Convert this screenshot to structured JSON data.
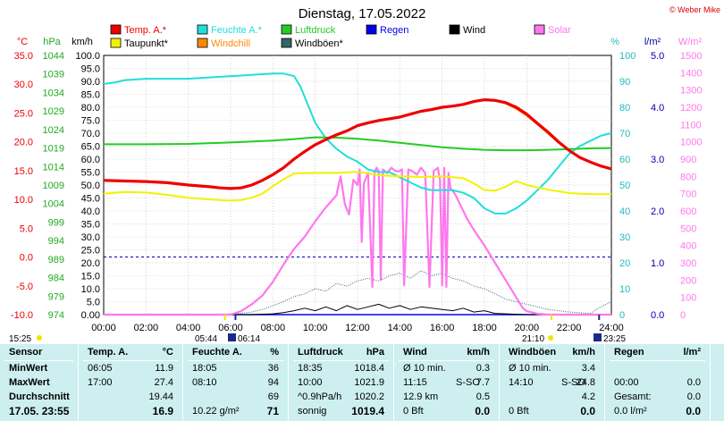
{
  "title": "Dienstag, 17.05.2022",
  "copyright": "© Weber Mike",
  "colors": {
    "temp": "#ee0000",
    "humidity": "#22dddd",
    "pressure": "#22cc22",
    "rain": "#0000ee",
    "wind": "#000000",
    "solar": "#ff77ee",
    "dew": "#f2f200",
    "windchill": "#ff8800",
    "gust": "#336666",
    "axis_blue": "#0000aa",
    "stats_bg": "#cdeff0"
  },
  "legend": [
    {
      "label": "Temp. A.*",
      "color": "#ee0000"
    },
    {
      "label": "Feuchte A.*",
      "color": "#22dddd"
    },
    {
      "label": "Luftdruck",
      "color": "#22cc22"
    },
    {
      "label": "Regen",
      "color": "#0000ee"
    },
    {
      "label": "Wind",
      "color": "#000000"
    },
    {
      "label": "Solar",
      "color": "#ff77ee"
    },
    {
      "label": "Taupunkt*",
      "color": "#f2f200"
    },
    {
      "label": "Windchill",
      "color": "#ff8800"
    },
    {
      "label": "Windböen*",
      "color": "#336666"
    }
  ],
  "axes": {
    "temp": {
      "unit": "°C",
      "ticks": [
        "35.0",
        "30.0",
        "25.0",
        "20.0",
        "15.0",
        "10.0",
        "5.0",
        "0.0",
        "-5.0",
        "-10.0"
      ]
    },
    "pressure": {
      "unit": "hPa",
      "ticks": [
        "1044",
        "1039",
        "1034",
        "1029",
        "1024",
        "1019",
        "1014",
        "1009",
        "1004",
        "999",
        "994",
        "989",
        "984",
        "979",
        "974"
      ]
    },
    "wind": {
      "unit": "km/h",
      "ticks": [
        "100.0",
        "95.0",
        "90.0",
        "85.0",
        "80.0",
        "75.0",
        "70.0",
        "65.0",
        "60.0",
        "55.0",
        "50.0",
        "45.0",
        "40.0",
        "35.0",
        "30.0",
        "25.0",
        "20.0",
        "15.0",
        "10.0",
        "5.0",
        "0.00"
      ]
    },
    "humidity": {
      "unit": "%",
      "ticks": [
        "100",
        "90",
        "80",
        "70",
        "60",
        "50",
        "40",
        "30",
        "20",
        "10",
        "0"
      ]
    },
    "rain": {
      "unit": "l/m²",
      "ticks": [
        "5.0",
        "4.0",
        "3.0",
        "2.0",
        "1.0",
        "0.0"
      ]
    },
    "solar": {
      "unit": "W/m²",
      "ticks": [
        "1500",
        "1400",
        "1300",
        "1200",
        "1100",
        "1000",
        "900",
        "800",
        "700",
        "600",
        "500",
        "400",
        "300",
        "200",
        "100",
        "0"
      ]
    },
    "x": {
      "ticks": [
        "00:00",
        "02:00",
        "04:00",
        "06:00",
        "08:00",
        "10:00",
        "12:00",
        "14:00",
        "16:00",
        "18:00",
        "20:00",
        "22:00",
        "24:00"
      ],
      "range": [
        0,
        24
      ]
    }
  },
  "sun_times": {
    "left": "15:25",
    "sunrise_a": "05:44",
    "sunrise_b": "06:14",
    "sunset_a": "21:10",
    "sunset_b": "23:25"
  },
  "chart_data": {
    "type": "line",
    "title": "Dienstag, 17.05.2022",
    "x_unit": "hours",
    "xlim": [
      0,
      24
    ],
    "series": [
      {
        "name": "Temp. A.*",
        "axis": "°C",
        "ylim": [
          -10,
          35
        ],
        "x": [
          0,
          1,
          2,
          3,
          4,
          5,
          5.5,
          6,
          6.5,
          7,
          7.5,
          8,
          8.5,
          9,
          9.5,
          10,
          10.5,
          11,
          11.5,
          12,
          12.5,
          13,
          13.5,
          14,
          14.5,
          15,
          15.5,
          16,
          16.5,
          17,
          17.5,
          18,
          18.5,
          19,
          19.5,
          20,
          20.5,
          21,
          21.5,
          22,
          22.5,
          23,
          23.5,
          24
        ],
        "y": [
          13.3,
          13.2,
          13.1,
          12.9,
          12.5,
          12.2,
          12.0,
          11.9,
          12.0,
          12.5,
          13.3,
          14.3,
          15.5,
          17.0,
          18.3,
          19.5,
          20.4,
          21.2,
          21.9,
          22.8,
          23.3,
          23.7,
          24.0,
          24.3,
          24.8,
          25.3,
          25.6,
          26.0,
          26.2,
          26.5,
          27.0,
          27.3,
          27.2,
          26.8,
          26.0,
          24.8,
          23.2,
          21.7,
          20.0,
          18.5,
          17.3,
          16.5,
          15.8,
          15.3
        ]
      },
      {
        "name": "Feuchte A.*",
        "axis": "%",
        "ylim": [
          0,
          100
        ],
        "x": [
          0,
          0.5,
          1,
          2,
          3,
          4,
          5,
          6,
          7,
          8,
          8.5,
          9,
          9.3,
          9.6,
          10,
          10.5,
          11,
          11.5,
          12,
          12.5,
          13,
          13.5,
          14,
          14.5,
          15,
          15.5,
          16,
          16.5,
          17,
          17.5,
          18,
          18.5,
          19,
          19.5,
          20,
          20.5,
          21,
          21.5,
          22,
          22.5,
          23,
          23.5,
          24
        ],
        "y": [
          89,
          89.5,
          90.5,
          91,
          91,
          91,
          91.5,
          92,
          92.5,
          93,
          93,
          92,
          88,
          82,
          74,
          68,
          64,
          61,
          59,
          56,
          55,
          55,
          53,
          51,
          49,
          48,
          48,
          48,
          47,
          45,
          41,
          39,
          39,
          41,
          44,
          48,
          52,
          57,
          62,
          65,
          67,
          69,
          70
        ]
      },
      {
        "name": "Luftdruck",
        "axis": "hPa",
        "ylim": [
          974,
          1044
        ],
        "x": [
          0,
          2,
          4,
          6,
          8,
          9,
          10,
          11,
          12,
          13,
          14,
          15,
          16,
          17,
          18,
          19,
          20,
          21,
          22,
          23,
          24
        ],
        "y": [
          1020.0,
          1020.0,
          1020.1,
          1020.5,
          1021.0,
          1021.4,
          1021.9,
          1021.8,
          1021.5,
          1021.0,
          1020.4,
          1019.8,
          1019.2,
          1018.8,
          1018.5,
          1018.4,
          1018.4,
          1018.5,
          1018.7,
          1018.9,
          1019.0
        ]
      },
      {
        "name": "Taupunkt*",
        "axis": "°C",
        "ylim": [
          -10,
          35
        ],
        "x": [
          0,
          1,
          2,
          3,
          4,
          5,
          6,
          6.5,
          7,
          7.5,
          8,
          8.5,
          9,
          10,
          11,
          12,
          13,
          14,
          15,
          16,
          17,
          17.5,
          18,
          18.5,
          19,
          19.5,
          20,
          21,
          22,
          23,
          24
        ],
        "y": [
          11.0,
          11.3,
          11.2,
          10.8,
          10.3,
          10.0,
          9.8,
          9.9,
          10.3,
          11.0,
          12.3,
          13.5,
          14.5,
          14.6,
          14.6,
          14.8,
          14.2,
          14.0,
          13.9,
          14.0,
          13.7,
          12.8,
          11.6,
          11.5,
          12.2,
          13.2,
          12.5,
          11.7,
          11.1,
          10.9,
          10.9
        ]
      },
      {
        "name": "Windchill",
        "axis": "°C",
        "ylim": [
          -10,
          35
        ],
        "x": [
          0,
          1,
          2,
          3,
          4,
          5,
          5.5,
          6,
          6.5,
          7,
          7.5,
          8,
          8.5,
          9,
          9.5,
          10,
          10.5,
          11,
          11.5,
          12,
          12.5,
          13,
          13.5,
          14,
          14.5,
          15,
          15.5,
          16,
          16.5,
          17,
          17.5,
          18,
          18.5,
          19,
          19.5,
          20,
          20.5,
          21,
          21.5,
          22,
          22.5,
          23,
          23.5,
          24
        ],
        "y": [
          13.3,
          13.2,
          13.1,
          12.9,
          12.5,
          12.2,
          12.0,
          11.9,
          12.0,
          12.5,
          13.3,
          14.3,
          15.5,
          17.0,
          18.3,
          19.5,
          20.4,
          21.2,
          21.9,
          22.8,
          23.3,
          23.7,
          24.0,
          24.3,
          24.8,
          25.3,
          25.6,
          26.0,
          26.2,
          26.5,
          27.0,
          27.3,
          27.2,
          26.6,
          25.7,
          24.5,
          23.0,
          21.4,
          19.8,
          18.4,
          17.2,
          16.5,
          15.8,
          15.3
        ]
      },
      {
        "name": "Solar",
        "axis": "W/m²",
        "ylim": [
          0,
          1500
        ],
        "x": [
          0,
          6,
          6.5,
          7,
          7.5,
          8,
          8.5,
          9,
          9.5,
          10,
          10.5,
          11,
          11.2,
          11.4,
          11.6,
          11.8,
          12,
          12.1,
          12.2,
          12.3,
          12.5,
          12.7,
          12.8,
          12.9,
          13,
          13.1,
          13.2,
          13.4,
          13.6,
          13.8,
          14,
          14.1,
          14.2,
          14.4,
          14.6,
          14.8,
          15,
          15.2,
          15.4,
          15.6,
          15.8,
          15.9,
          16,
          16.1,
          16.2,
          16.3,
          16.4,
          16.6,
          16.8,
          17,
          17.2,
          17.5,
          18,
          18.5,
          19,
          19.5,
          19.8,
          20,
          20.5,
          21,
          24
        ],
        "y": [
          0,
          0,
          20,
          60,
          110,
          190,
          290,
          380,
          450,
          540,
          620,
          690,
          800,
          640,
          580,
          780,
          750,
          840,
          420,
          760,
          820,
          160,
          820,
          850,
          830,
          200,
          840,
          820,
          850,
          830,
          830,
          840,
          170,
          840,
          830,
          810,
          850,
          820,
          160,
          830,
          850,
          780,
          170,
          850,
          160,
          820,
          730,
          700,
          650,
          600,
          550,
          490,
          400,
          300,
          200,
          100,
          40,
          20,
          5,
          0,
          0
        ]
      },
      {
        "name": "Wind",
        "axis": "km/h",
        "ylim": [
          0,
          100
        ],
        "x": [
          0,
          7,
          8,
          8.5,
          9,
          9.5,
          10,
          10.5,
          11,
          11.5,
          12,
          12.5,
          13,
          13.5,
          14,
          14.5,
          15,
          15.5,
          16,
          16.5,
          17,
          17.5,
          18,
          18.5,
          19,
          20,
          24
        ],
        "y": [
          0,
          0,
          0.3,
          0.8,
          1.5,
          2.5,
          1.5,
          3.0,
          1.5,
          3.5,
          2.0,
          3.0,
          4.0,
          2.5,
          3.5,
          2.0,
          3.0,
          2.5,
          2.0,
          1.5,
          2.5,
          1.0,
          1.5,
          0.5,
          0.3,
          0,
          0
        ]
      },
      {
        "name": "Windböen*",
        "axis": "km/h",
        "ylim": [
          0,
          100
        ],
        "x": [
          0,
          6,
          7,
          7.5,
          8,
          8.5,
          9,
          9.5,
          10,
          10.5,
          11,
          11.5,
          12,
          12.5,
          13,
          13.5,
          14,
          14.5,
          15,
          15.5,
          16,
          16.5,
          17,
          17.5,
          18,
          18.5,
          19,
          19.5,
          20,
          21,
          22,
          23,
          23.5,
          24
        ],
        "y": [
          0,
          0,
          1,
          2,
          3.5,
          5,
          7,
          8,
          10,
          9,
          12,
          11,
          13,
          14,
          13,
          15,
          16,
          14,
          17,
          15,
          16,
          14,
          13,
          11,
          10,
          8,
          6,
          5,
          4,
          2,
          1,
          0.5,
          3,
          5
        ]
      },
      {
        "name": "Regen",
        "axis": "l/m²",
        "ylim": [
          0,
          5
        ],
        "x": [
          0,
          24
        ],
        "y": [
          0,
          0
        ]
      }
    ]
  },
  "stats": {
    "col_sensor": {
      "head": "Sensor",
      "min": "MinWert",
      "max": "MaxWert",
      "avg": "Durchschnitt",
      "last": "17.05. 23:55"
    },
    "col_temp": {
      "head": "Temp. A.",
      "unit": "°C",
      "min_time": "06:05",
      "min_val": "11.9",
      "max_time": "17:00",
      "max_val": "27.4",
      "avg_val": "19.44",
      "last_val": "16.9"
    },
    "col_hum": {
      "head": "Feuchte A.",
      "unit": "%",
      "min_time": "18:05",
      "min_val": "36",
      "max_time": "08:10",
      "max_val": "94",
      "avg_val": "69",
      "last_left": "10.22 g/m²",
      "last_val": "71"
    },
    "col_press": {
      "head": "Luftdruck",
      "unit": "hPa",
      "min_time": "18:35",
      "min_val": "1018.4",
      "max_time": "10:00",
      "max_val": "1021.9",
      "avg_left": "^0.9hPa/h",
      "avg_val": "1020.2",
      "last_left": "sonnig",
      "last_val": "1019.4"
    },
    "col_wind": {
      "head": "Wind",
      "unit": "km/h",
      "min_left": "Ø 10 min.",
      "min_val": "0.3",
      "max_time": "11:15",
      "max_dir": "S-SO",
      "max_val": "7.7",
      "avg_left": "12.9 km",
      "avg_val": "0.5",
      "last_left": "0 Bft",
      "last_val": "0.0"
    },
    "col_gust": {
      "head": "Windböen",
      "unit": "km/h",
      "min_left": "Ø 10 min.",
      "min_val": "3.4",
      "max_time": "14:10",
      "max_dir": "S-SO",
      "max_val": "24.8",
      "avg_val": "4.2",
      "last_left": "0 Bft",
      "last_val": "0.0"
    },
    "col_rain": {
      "head": "Regen",
      "unit": "l/m²",
      "max_time": "00:00",
      "max_val": "0.0",
      "avg_left": "Gesamt:",
      "avg_val": "0.0",
      "last_left": "0.0 l/m²",
      "last_val": "0.0"
    }
  }
}
